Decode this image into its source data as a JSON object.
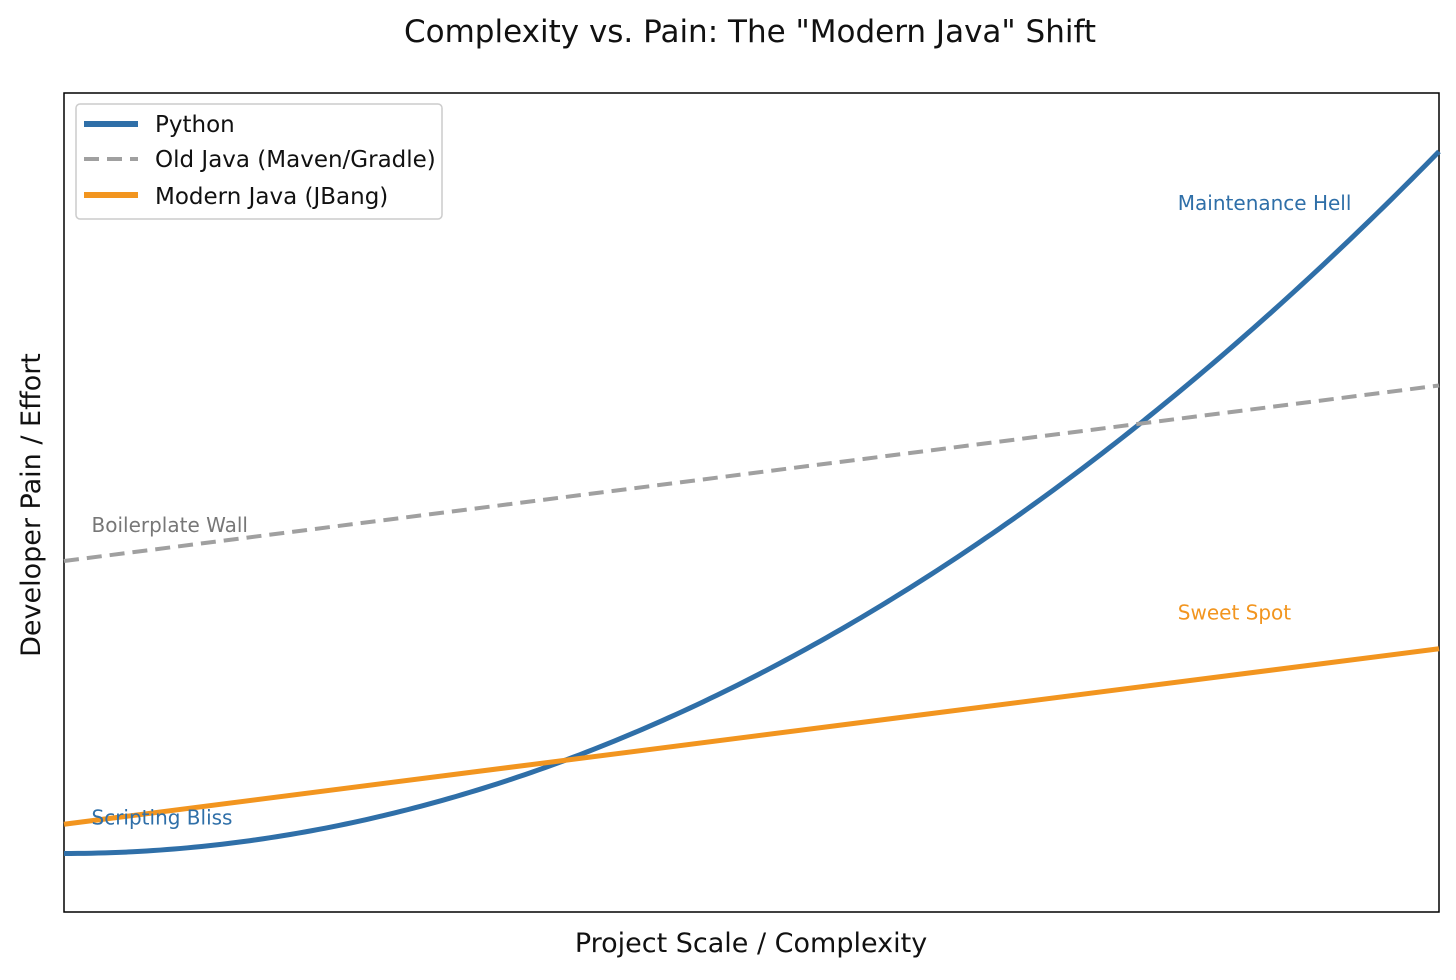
{
  "chart_data": {
    "type": "line",
    "title": "Complexity vs. Pain: The \"Modern Java\" Shift",
    "xlabel": "Project Scale / Complexity",
    "ylabel": "Developer Pain / Effort",
    "xlim": [
      0,
      10
    ],
    "ylim": [
      0,
      14
    ],
    "grid": false,
    "ticks_visible": false,
    "legend_position": "top-left",
    "series": [
      {
        "name": "Python",
        "color": "#2f6fa8",
        "style": "solid",
        "function": "quadratic",
        "x": [
          0,
          1,
          2,
          3,
          4,
          5,
          6,
          7,
          8,
          9,
          10
        ],
        "y": [
          1,
          1.12,
          1.48,
          2.08,
          2.92,
          4.0,
          5.32,
          6.88,
          8.68,
          10.72,
          13.0
        ]
      },
      {
        "name": "Old Java (Maven/Gradle)",
        "color": "#a0a0a0",
        "style": "dashed",
        "function": "linear",
        "x": [
          0,
          10
        ],
        "y": [
          6,
          9
        ]
      },
      {
        "name": "Modern Java (JBang)",
        "color": "#f2951f",
        "style": "solid",
        "function": "linear",
        "x": [
          0,
          10
        ],
        "y": [
          1.5,
          4.5
        ]
      }
    ],
    "annotations": [
      {
        "text": "Maintenance Hell",
        "x": 8.1,
        "y": 12.0,
        "color": "#2f6fa8"
      },
      {
        "text": "Boilerplate Wall",
        "x": 0.2,
        "y": 6.5,
        "color": "#777777"
      },
      {
        "text": "Sweet Spot",
        "x": 8.1,
        "y": 5.0,
        "color": "#f2951f"
      },
      {
        "text": "Scripting Bliss",
        "x": 0.2,
        "y": 1.5,
        "color": "#2f6fa8"
      }
    ]
  }
}
